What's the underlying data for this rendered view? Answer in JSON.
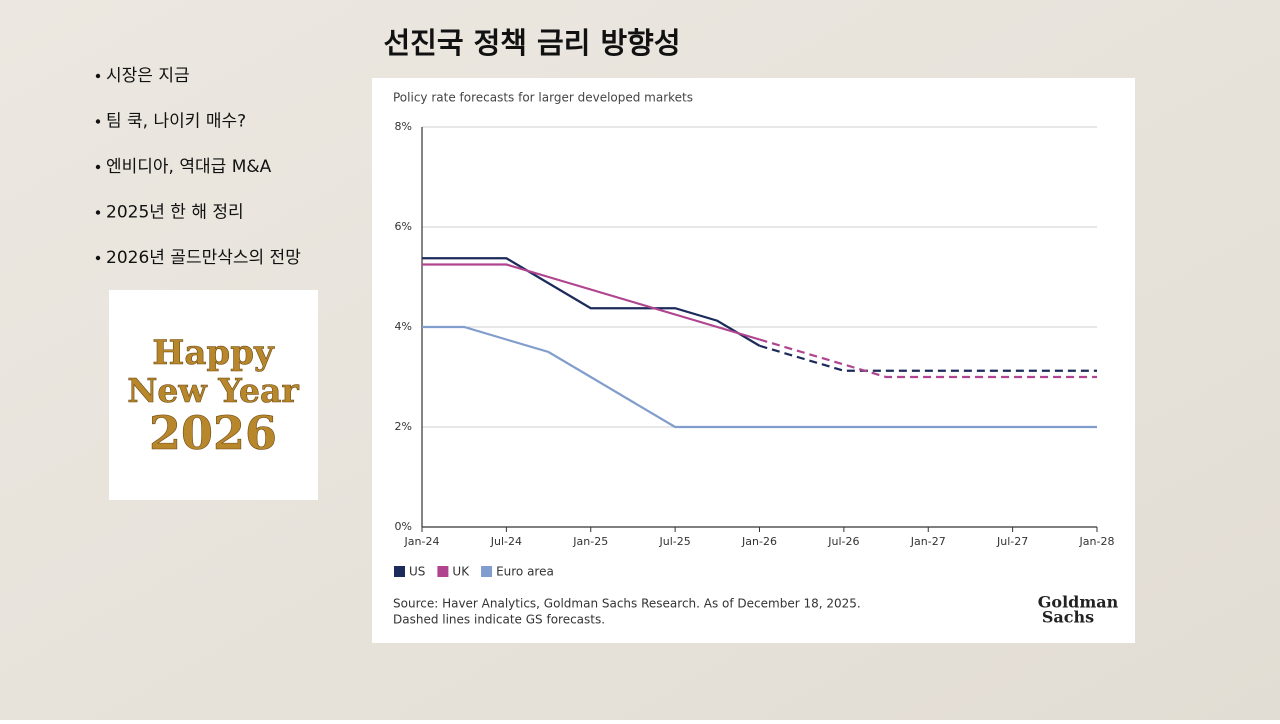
{
  "slide": {
    "title": "선진국 정책 금리 방향성",
    "bullets": [
      "시장은 지금",
      "팀 쿡, 나이키 매수?",
      "엔비디아, 역대급 M&A",
      "2025년 한 해 정리",
      "2026년 골드만삭스의 전망"
    ],
    "image_text": [
      "Happy",
      "New Year",
      "2026"
    ]
  },
  "chart_data": {
    "type": "line",
    "title": "Policy rate forecasts for larger developed markets",
    "x": [
      "Jan-24",
      "Apr-24",
      "Jul-24",
      "Oct-24",
      "Jan-25",
      "Apr-25",
      "Jul-25",
      "Oct-25",
      "Jan-26",
      "Apr-26",
      "Jul-26",
      "Oct-26",
      "Jan-27",
      "Apr-27",
      "Jul-27",
      "Oct-27",
      "Jan-28"
    ],
    "series": [
      {
        "name": "US",
        "color": "#1c2b5c",
        "dashed_from": "Jan-26",
        "values": [
          5.375,
          5.375,
          5.375,
          4.875,
          4.375,
          4.375,
          4.375,
          4.125,
          3.625,
          3.375,
          3.125,
          3.125,
          3.125,
          3.125,
          3.125,
          3.125,
          3.125
        ]
      },
      {
        "name": "UK",
        "color": "#b0448f",
        "dashed_from": "Jan-26",
        "values": [
          5.25,
          5.25,
          5.25,
          5.0,
          4.75,
          4.5,
          4.25,
          4.0,
          3.75,
          3.5,
          3.25,
          3.0,
          3.0,
          3.0,
          3.0,
          3.0,
          3.0
        ]
      },
      {
        "name": "Euro area",
        "color": "#819dcd",
        "values": [
          4.0,
          4.0,
          3.75,
          3.5,
          3.0,
          2.5,
          2.0,
          2.0,
          2.0,
          2.0,
          2.0,
          2.0,
          2.0,
          2.0,
          2.0,
          2.0,
          2.0
        ]
      }
    ],
    "ylim": [
      0,
      8
    ],
    "yticks": [
      {
        "value": 0,
        "label": "0%"
      },
      {
        "value": 2,
        "label": "2%"
      },
      {
        "value": 4,
        "label": "4%"
      },
      {
        "value": 6,
        "label": "6%"
      },
      {
        "value": 8,
        "label": "8%"
      }
    ],
    "xticks": [
      "Jan-24",
      "Jul-24",
      "Jan-25",
      "Jul-25",
      "Jan-26",
      "Jul-26",
      "Jan-27",
      "Jul-27",
      "Jan-28"
    ],
    "grid": true,
    "legend": "bottom-left",
    "source": "Source: Haver Analytics, Goldman Sachs Research. As of December 18, 2025.",
    "note": "Dashed lines indicate GS forecasts.",
    "logo": [
      "Goldman",
      "Sachs"
    ]
  }
}
